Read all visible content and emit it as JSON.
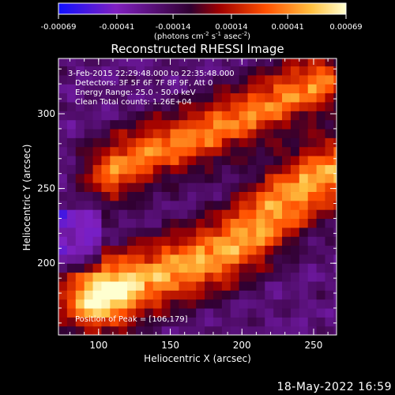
{
  "colorbar": {
    "tick_labels": [
      "-0.00069",
      "-0.00041",
      "-0.00014",
      "0.00014",
      "0.00041",
      "0.00069"
    ],
    "tick_values": [
      -0.00069,
      -0.00041,
      -0.00014,
      0.00014,
      0.00041,
      0.00069
    ],
    "range": [
      -0.00069,
      0.00069
    ],
    "unit_label": "(photons cm",
    "unit_exp1": "-2",
    "unit_mid": " s",
    "unit_exp2": "-1",
    "unit_mid2": " asec",
    "unit_exp3": "-2",
    "unit_end": ")",
    "colors": [
      "#1010ff",
      "#8020c0",
      "#300030",
      "#a00000",
      "#ff5000",
      "#ffc040",
      "#ffffd0"
    ]
  },
  "chart_data": {
    "type": "heatmap",
    "title": "Reconstructed RHESSI Image",
    "xlabel": "Heliocentric X (arcsec)",
    "ylabel": "Heliocentric Y (arcsec)",
    "xlim": [
      72,
      266
    ],
    "ylim": [
      152,
      337
    ],
    "x_ticks": [
      100,
      150,
      200,
      250
    ],
    "y_ticks": [
      200,
      250,
      300
    ],
    "colormap": "RHESSI red-temperature with blue negatives",
    "annotations": {
      "time": "3-Feb-2015 22:29:48.000 to 22:35:48.000",
      "detectors": "Detectors: 3F 5F 6F 7F 8F 9F, Att 0",
      "energy": "Energy Range: 25.0 - 50.0 keV",
      "method": "Clean     Total counts: 1.26E+04",
      "peak": "Position of Peak = [106,179]"
    },
    "peak_position": [
      106,
      179
    ],
    "bright_ridges": [
      {
        "name": "",
        "points": [
          [
            95,
            177
          ],
          [
            120,
            186
          ],
          [
            150,
            195
          ],
          [
            180,
            205
          ],
          [
            205,
            220
          ],
          [
            228,
            240
          ],
          [
            250,
            255
          ],
          [
            265,
            262
          ]
        ]
      },
      {
        "name": "",
        "points": [
          [
            110,
            262
          ],
          [
            135,
            275
          ],
          [
            160,
            282
          ],
          [
            180,
            290
          ],
          [
            205,
            300
          ],
          [
            230,
            312
          ],
          [
            255,
            322
          ]
        ]
      }
    ]
  },
  "footer": {
    "date": "18-May-2022 16:59"
  }
}
